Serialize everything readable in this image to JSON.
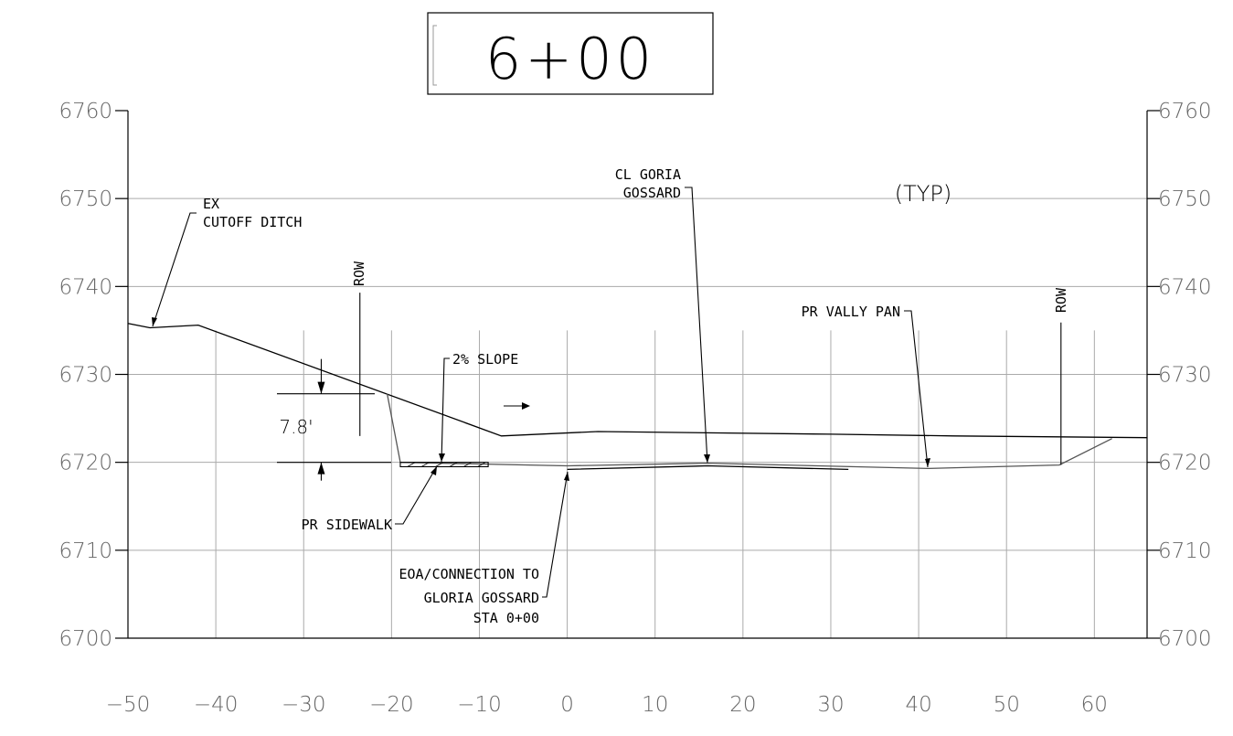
{
  "station_label": "6+00",
  "chart_data": {
    "type": "line",
    "title": "6+00",
    "xlim": [
      -50,
      66
    ],
    "ylim": [
      6700,
      6760
    ],
    "x_ticks": [
      -50,
      -40,
      -30,
      -20,
      -10,
      0,
      10,
      20,
      30,
      40,
      50,
      60
    ],
    "y_ticks": [
      6700,
      6710,
      6720,
      6730,
      6740,
      6750,
      6760
    ],
    "x_tick_labels": [
      "−50",
      "−40",
      "−30",
      "−20",
      "−10",
      "0",
      "10",
      "20",
      "30",
      "40",
      "50",
      "60"
    ],
    "y_tick_labels": [
      "6700",
      "6710",
      "6720",
      "6730",
      "6740",
      "6750",
      "6760"
    ],
    "grid": true,
    "series": [
      {
        "role": "existing-ground",
        "color": "#000000",
        "points": [
          [
            -50,
            6735.8
          ],
          [
            -47.5,
            6735.3
          ],
          [
            -42,
            6735.6
          ],
          [
            -7.5,
            6723.0
          ],
          [
            3.5,
            6723.5
          ],
          [
            30,
            6723.2
          ],
          [
            44,
            6723.0
          ],
          [
            66,
            6722.8
          ]
        ]
      },
      {
        "role": "proposed-grade",
        "color": "#555555",
        "points": [
          [
            -20.5,
            6727.8
          ],
          [
            -19,
            6720.0
          ],
          [
            0,
            6719.6
          ],
          [
            16,
            6719.9
          ],
          [
            41,
            6719.3
          ],
          [
            56,
            6719.7
          ],
          [
            62,
            6722.7
          ]
        ]
      },
      {
        "role": "proposed-section-bottom",
        "color": "#000000",
        "points": [
          [
            0,
            6719.2
          ],
          [
            16,
            6719.6
          ],
          [
            32,
            6719.2
          ]
        ]
      }
    ],
    "sidewalk": {
      "x_start": -19,
      "x_end": -9,
      "top": 6720.0,
      "bottom": 6719.5
    },
    "row_markers": [
      {
        "x": -23.6,
        "label": "ROW"
      },
      {
        "x": 56.2,
        "label": "ROW"
      }
    ],
    "dimension": {
      "value": "7.8'",
      "x": -28,
      "top": 6727.8,
      "bottom": 6720.0
    },
    "annotations": {
      "cutoff_ditch": [
        "EX",
        "CUTOFF DITCH"
      ],
      "slope": "2% SLOPE",
      "centerline": [
        "CL GORIA",
        "GOSSARD"
      ],
      "typical": "(TYP)",
      "valley_pan": "PR VALLY PAN",
      "sidewalk": "PR SIDEWALK",
      "eoa": [
        "EOA/CONNECTION TO",
        "GLORIA GOSSARD",
        "STA 0+00"
      ]
    }
  }
}
